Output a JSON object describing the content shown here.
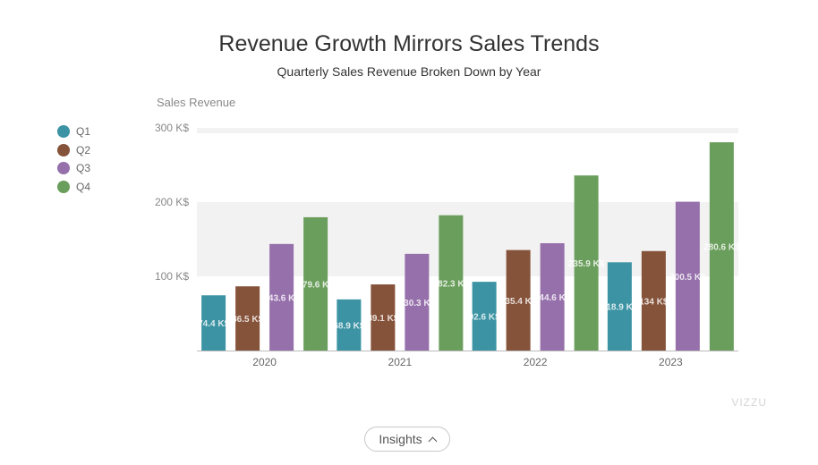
{
  "chart_data": {
    "type": "bar",
    "title": "Revenue Growth Mirrors Sales Trends",
    "subtitle": "Quarterly Sales Revenue Broken Down by Year",
    "ylabel": "Sales Revenue",
    "xlabel": "",
    "categories": [
      "2020",
      "2021",
      "2022",
      "2023"
    ],
    "y_ticks": [
      "100 K$",
      "200 K$",
      "300 K$"
    ],
    "ylim": [
      0,
      300
    ],
    "series": [
      {
        "name": "Q1",
        "color": "#3b93a3",
        "values": [
          74.4,
          68.9,
          92.6,
          118.9
        ],
        "labels": [
          "74.4 K$",
          "68.9 K$",
          "92.6 K$",
          "118.9 K$"
        ]
      },
      {
        "name": "Q2",
        "color": "#85523a",
        "values": [
          86.5,
          89.1,
          135.4,
          134
        ],
        "labels": [
          "86.5 K$",
          "89.1 K$",
          "135.4 K$",
          "134 K$"
        ]
      },
      {
        "name": "Q3",
        "color": "#9670ab",
        "values": [
          143.6,
          130.3,
          144.6,
          200.5
        ],
        "labels": [
          "143.6 K$",
          "130.3 K$",
          "144.6 K$",
          "200.5 K$"
        ]
      },
      {
        "name": "Q4",
        "color": "#6a9e5c",
        "values": [
          179.6,
          182.3,
          235.9,
          280.6
        ],
        "labels": [
          "179.6 K$",
          "182.3 K$",
          "235.9 K$",
          "280.6 K$"
        ]
      }
    ],
    "grid": "alternating-bands",
    "legend_position": "left"
  },
  "brand": "VIZZU",
  "insights_button": {
    "label": "Insights",
    "icon": "chevron-up-icon"
  }
}
